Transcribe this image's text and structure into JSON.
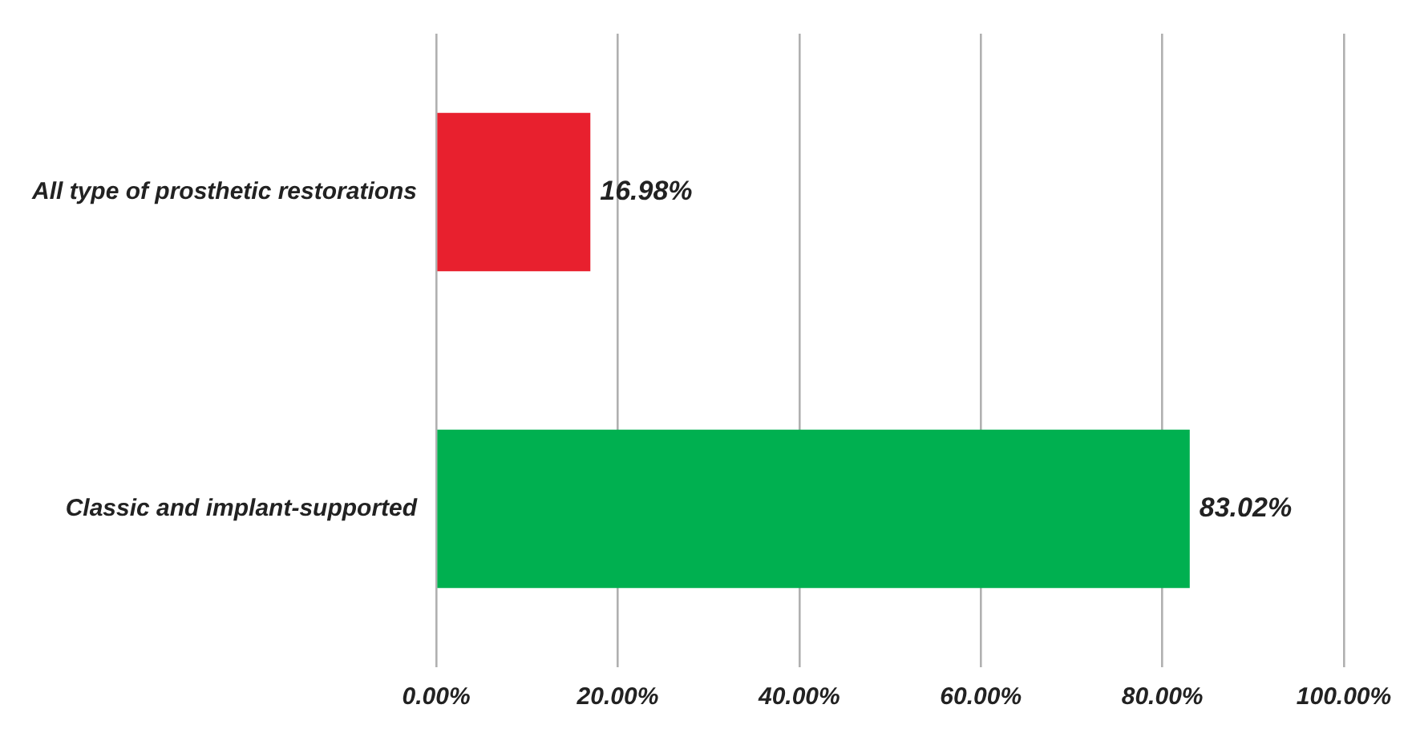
{
  "chart_data": {
    "type": "bar",
    "orientation": "horizontal",
    "categories": [
      "All type of prosthetic restorations",
      "Classic and implant-supported"
    ],
    "values": [
      16.98,
      83.02
    ],
    "colors": [
      "#e8202e",
      "#00b050"
    ],
    "value_labels": [
      "16.98%",
      "83.02%"
    ],
    "xlim": [
      0,
      100
    ],
    "xticks": [
      {
        "value": 0,
        "label": "0.00%"
      },
      {
        "value": 20,
        "label": "20.00%"
      },
      {
        "value": 40,
        "label": "40.00%"
      },
      {
        "value": 60,
        "label": "60.00%"
      },
      {
        "value": 80,
        "label": "80.00%"
      },
      {
        "value": 100,
        "label": "100.00%"
      }
    ],
    "grid": "x"
  }
}
